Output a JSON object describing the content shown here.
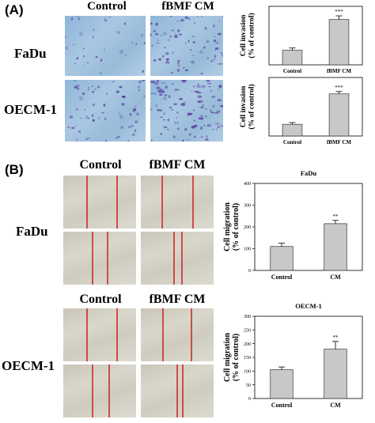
{
  "panel_a": {
    "letter": "(A)",
    "col_titles": [
      "Control",
      "fBMF CM"
    ],
    "row_titles": [
      "FaDu",
      "OECM-1"
    ]
  },
  "panel_b": {
    "letter": "(B)",
    "col_titles_top": [
      "Control",
      "fBMF CM"
    ],
    "col_titles_bottom": [
      "Control",
      "fBMF CM"
    ],
    "row_titles": [
      "FaDu",
      "OECM-1"
    ]
  },
  "colors": {
    "bar_fill": "#c8c8c8",
    "scratch_line": "#cc1f1f",
    "invasion_stain": "#5a3fa0"
  },
  "chart_data": [
    {
      "type": "bar",
      "title": "",
      "ylabel": "Cell invasion\n(% of control)",
      "categories": [
        "Control",
        "fBMF CM"
      ],
      "values": [
        100,
        310
      ],
      "errors": [
        15,
        25
      ],
      "significance": [
        "",
        "***"
      ],
      "ylim": [
        0,
        400
      ],
      "yticks": []
    },
    {
      "type": "bar",
      "title": "",
      "ylabel": "Cell invasion\n(% of control)",
      "categories": [
        "Control",
        "fBMF CM"
      ],
      "values": [
        100,
        360
      ],
      "errors": [
        15,
        20
      ],
      "significance": [
        "",
        "***"
      ],
      "ylim": [
        0,
        500
      ],
      "yticks": []
    },
    {
      "type": "bar",
      "title": "FaDu",
      "ylabel": "Cell migration\n(% of control)",
      "categories": [
        "Control",
        "CM"
      ],
      "values": [
        110,
        215
      ],
      "errors": [
        15,
        15
      ],
      "significance": [
        "",
        "**"
      ],
      "ylim": [
        0,
        400
      ],
      "yticks": [
        0,
        100,
        200,
        300,
        400
      ]
    },
    {
      "type": "bar",
      "title": "OECM-1",
      "ylabel": "Cell migration\n(% of control)",
      "categories": [
        "Control",
        "CM"
      ],
      "values": [
        105,
        180
      ],
      "errors": [
        10,
        28
      ],
      "significance": [
        "",
        "**"
      ],
      "ylim": [
        0,
        300
      ],
      "yticks": [
        0,
        50,
        100,
        150,
        200,
        250,
        300
      ]
    }
  ]
}
